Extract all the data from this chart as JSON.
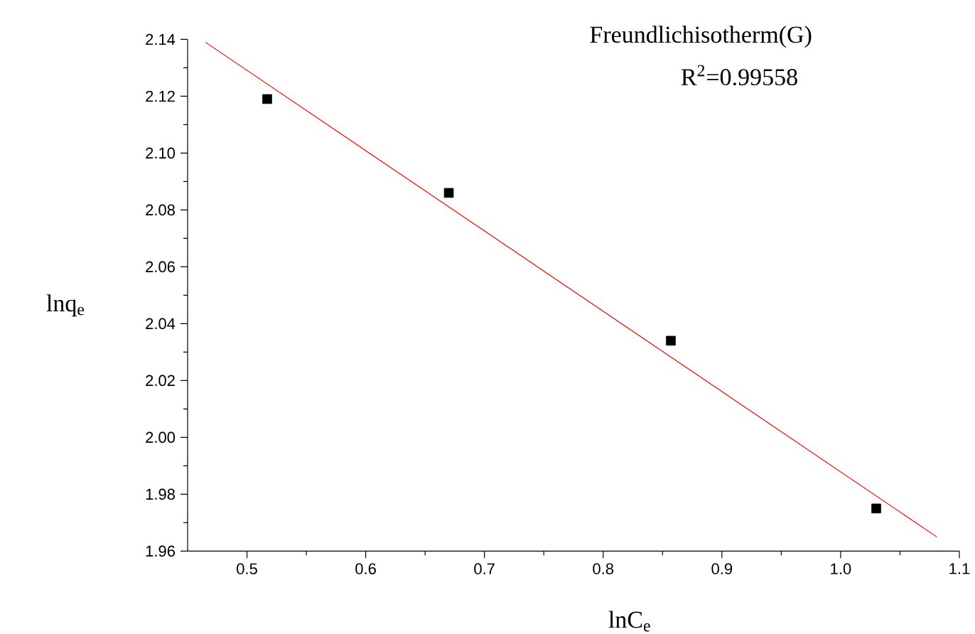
{
  "chart_data": {
    "type": "scatter",
    "xlabel": "lnC$_{e}$",
    "ylabel": "lnq$_{e}$",
    "annotations": [
      "Freundlichisotherm(G)",
      "R$^{2}$=0.99558"
    ],
    "xlim": [
      0.45,
      1.1
    ],
    "xticks": [
      0.5,
      0.6,
      0.7,
      0.8,
      0.9,
      {
        "value": 1.0,
        "label": "1.0"
      },
      1.1
    ],
    "ylim": [
      1.96,
      2.14
    ],
    "yticks": [
      {
        "value": 1.96,
        "label": "1.96"
      },
      {
        "value": 1.98,
        "label": "1.98"
      },
      {
        "value": 2.0,
        "label": "2.00"
      },
      {
        "value": 2.02,
        "label": "2.02"
      },
      {
        "value": 2.04,
        "label": "2.04"
      },
      {
        "value": 2.06,
        "label": "2.06"
      },
      {
        "value": 2.08,
        "label": "2.08"
      },
      {
        "value": 2.1,
        "label": "2.10"
      },
      {
        "value": 2.12,
        "label": "2.12"
      },
      {
        "value": 2.14,
        "label": "2.14"
      }
    ],
    "grid": false,
    "series": [
      {
        "marker": "square",
        "color": "#000000",
        "x": [
          0.517,
          0.67,
          0.857,
          1.03
        ],
        "values": [
          2.119,
          2.086,
          2.034,
          1.975
        ]
      },
      {
        "type": "line",
        "marker": "none",
        "line_style": "solid",
        "color": "#ff0000",
        "x": [
          0.465,
          1.081
        ],
        "values": [
          2.139,
          1.965
        ]
      }
    ]
  }
}
